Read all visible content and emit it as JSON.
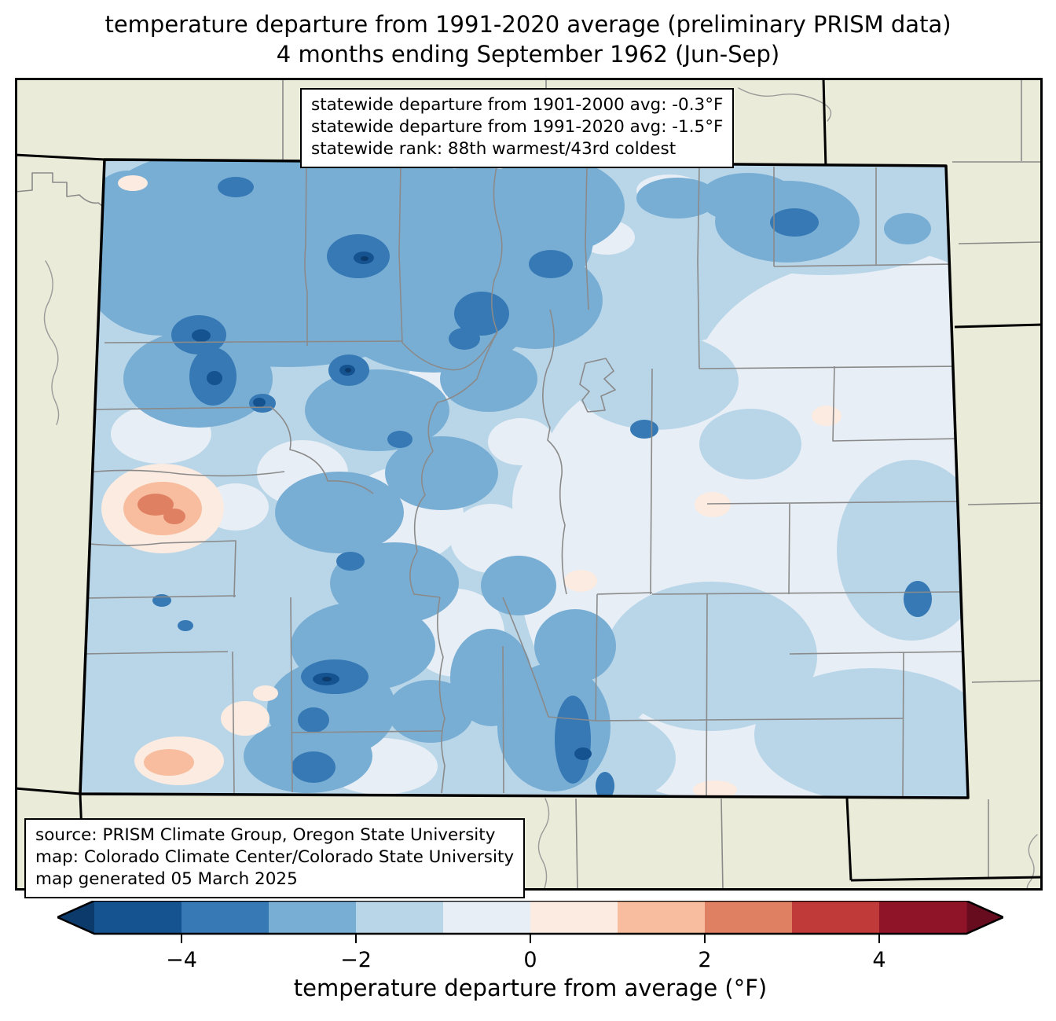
{
  "header": {
    "title_line1": "temperature departure from 1991-2020 average (preliminary PRISM data)",
    "title_line2": "4 months ending September 1962 (Jun-Sep)"
  },
  "stats_box": {
    "lines": [
      "statewide departure from 1901-2000 avg: -0.3°F",
      "statewide departure from 1991-2020 avg: -1.5°F",
      "statewide rank: 88th warmest/43rd coldest"
    ]
  },
  "source_box": {
    "lines": [
      "source: PRISM Climate Group, Oregon State University",
      "map: Colorado Climate Center/Colorado State University",
      "map generated 05 March 2025"
    ]
  },
  "colorbar": {
    "label": "temperature departure from average (°F)",
    "min": -5,
    "max": 5,
    "ticks": [
      "−4",
      "−2",
      "0",
      "2",
      "4"
    ],
    "tick_values": [
      -4,
      -2,
      0,
      2,
      4
    ],
    "under_color": "#0b3a6b",
    "over_color": "#670b1e",
    "segment_colors": [
      "#155290",
      "#3679b5",
      "#79aed4",
      "#b9d6e9",
      "#e7eef5",
      "#fcebe0",
      "#f7bd9e",
      "#e08063",
      "#c13a3a",
      "#8f1428"
    ],
    "segment_ranges": [
      [
        -5,
        -4
      ],
      [
        -4,
        -3
      ],
      [
        -3,
        -2
      ],
      [
        -2,
        -1
      ],
      [
        -1,
        0
      ],
      [
        0,
        1
      ],
      [
        1,
        2
      ],
      [
        2,
        3
      ],
      [
        3,
        4
      ],
      [
        4,
        5
      ]
    ]
  },
  "map_colors": {
    "outside_state_fill": "#ebebd9",
    "county_line": "#8a8a8a",
    "state_line": "#000000"
  },
  "chart_data": {
    "type": "heatmap",
    "subtype": "geographic-anomaly-map",
    "region": "Colorado, USA (with surrounding state edges visible)",
    "variable": "temperature departure from average (°F)",
    "period": "4 months ending September 1962 (Jun-Sep)",
    "data_source": "preliminary PRISM data",
    "statewide_departure_from_1901_2000_avg_F": -0.3,
    "statewide_departure_from_1991_2020_avg_F": -1.5,
    "statewide_rank": "88th warmest/43rd coldest",
    "legend_position": "bottom horizontal colorbar",
    "color_scale": {
      "bins_F": [
        [
          -5,
          -4
        ],
        [
          -4,
          -3
        ],
        [
          -3,
          -2
        ],
        [
          -2,
          -1
        ],
        [
          -1,
          0
        ],
        [
          0,
          1
        ],
        [
          1,
          2
        ],
        [
          2,
          3
        ],
        [
          3,
          4
        ],
        [
          4,
          5
        ]
      ],
      "bin_colors": [
        "#155290",
        "#3679b5",
        "#79aed4",
        "#b9d6e9",
        "#e7eef5",
        "#fcebe0",
        "#f7bd9e",
        "#e08063",
        "#c13a3a",
        "#8f1428"
      ],
      "under_minus5_color": "#0b3a6b",
      "over_plus5_color": "#670b1e"
    },
    "pattern_summary": "Statewide mostly negative anomalies of 0 to -3°F (light-to-medium blues); pockets of -3 to -5°F (dark blue/navy) over the northwest mountains, Flat Tops, San Juan and Culebra ranges; small positive anomalies of +1 to +3°F (peach/orange) in the west-central lower valleys (Delta/Montrose area) and far south-central valleys; eastern plains mostly -1 to 0°F."
  }
}
